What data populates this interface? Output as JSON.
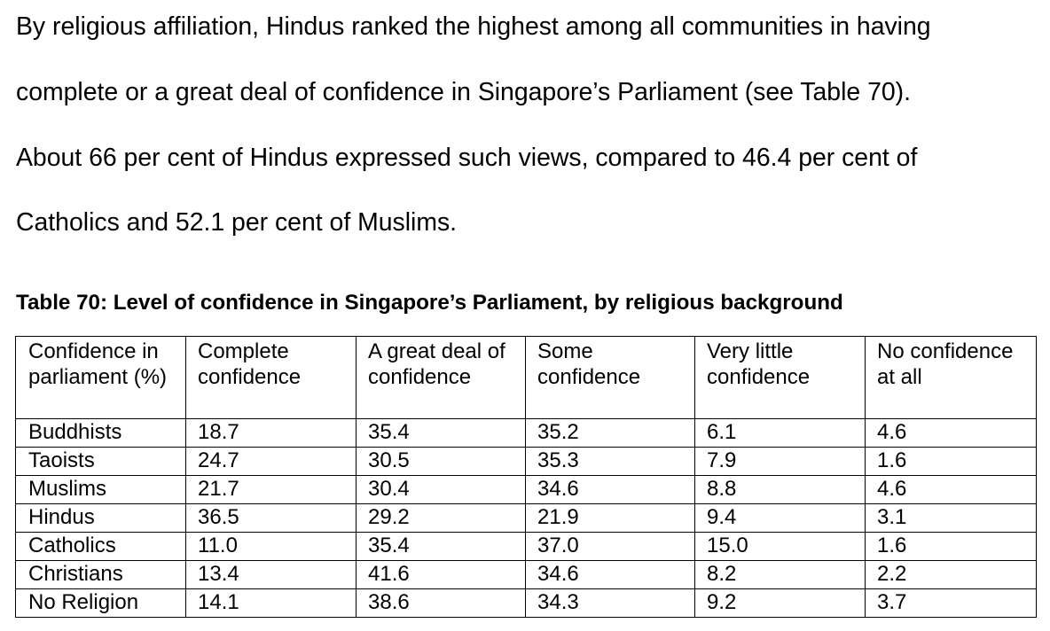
{
  "paragraph": {
    "lines": [
      "By religious affiliation, Hindus ranked the highest among all communities in having",
      "complete or a great deal of confidence in Singapore’s Parliament (see Table 70).",
      "About 66 per cent of Hindus expressed such views, compared to 46.4 per cent of",
      "Catholics and 52.1 per cent of Muslims."
    ]
  },
  "table": {
    "caption": "Table 70: Level of confidence in Singapore’s Parliament, by religious background",
    "headers": [
      "Confidence in parliament (%)",
      "Complete confidence",
      "A great deal of confidence",
      "Some confidence",
      "Very little confidence",
      "No confidence at all"
    ],
    "rows": [
      [
        "Buddhists",
        "18.7",
        "35.4",
        "35.2",
        "6.1",
        "4.6"
      ],
      [
        "Taoists",
        "24.7",
        "30.5",
        "35.3",
        "7.9",
        "1.6"
      ],
      [
        "Muslims",
        "21.7",
        "30.4",
        "34.6",
        "8.8",
        "4.6"
      ],
      [
        "Hindus",
        "36.5",
        "29.2",
        "21.9",
        "9.4",
        "3.1"
      ],
      [
        "Catholics",
        "11.0",
        "35.4",
        "37.0",
        "15.0",
        "1.6"
      ],
      [
        "Christians",
        "13.4",
        "41.6",
        "34.6",
        "8.2",
        "2.2"
      ],
      [
        "No Religion",
        "14.1",
        "38.6",
        "34.3",
        "9.2",
        "3.7"
      ]
    ]
  }
}
